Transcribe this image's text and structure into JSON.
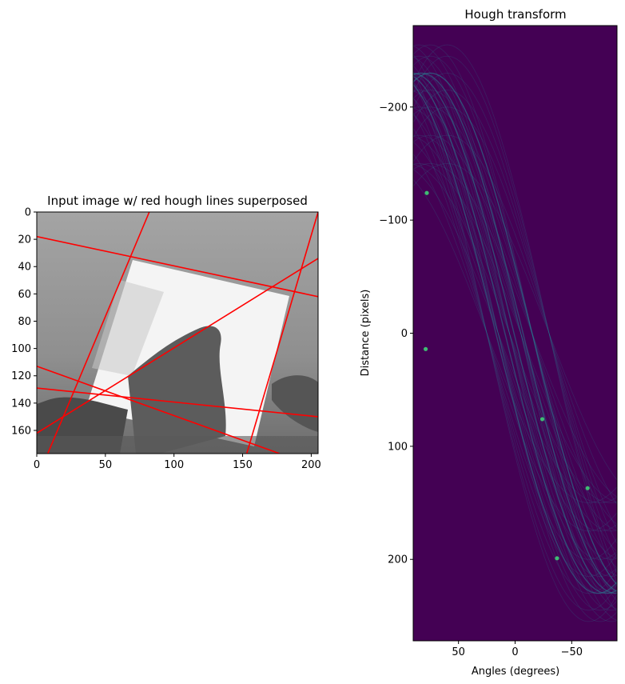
{
  "chart_data": [
    {
      "type": "image",
      "title": "Input image w/ red hough lines superposed",
      "xlabel": "",
      "ylabel": "",
      "xlim": [
        0,
        205
      ],
      "ylim": [
        177,
        0
      ],
      "x_ticks": [
        0,
        50,
        100,
        150,
        200
      ],
      "y_ticks": [
        0,
        20,
        40,
        60,
        80,
        100,
        120,
        140,
        160
      ],
      "image_description": "Grayscale photo of a tilted white sheet of paper held by a hand",
      "line_color": "#ff0000",
      "hough_lines": [
        {
          "x1": 0,
          "y1": 18,
          "x2": 205,
          "y2": 62
        },
        {
          "x1": 8,
          "y1": 177,
          "x2": 82,
          "y2": 0
        },
        {
          "x1": 0,
          "y1": 162,
          "x2": 205,
          "y2": 34
        },
        {
          "x1": 153,
          "y1": 177,
          "x2": 205,
          "y2": 0
        },
        {
          "x1": 0,
          "y1": 113,
          "x2": 177,
          "y2": 177
        },
        {
          "x1": 0,
          "y1": 129,
          "x2": 205,
          "y2": 150
        }
      ]
    },
    {
      "type": "heatmap",
      "title": "Hough transform",
      "xlabel": "Angles (degrees)",
      "ylabel": "Distance (pixels)",
      "xlim": [
        90,
        -90
      ],
      "ylim": [
        272,
        -272
      ],
      "x_ticks": [
        50,
        0,
        -50
      ],
      "y_ticks": [
        -200,
        -100,
        0,
        100,
        200
      ],
      "colormap": "viridis",
      "background_color": "#440154",
      "curve_color": "#2a788e",
      "peak_color": "#3fbc73",
      "peaks": [
        {
          "angle": 78,
          "distance": -124
        },
        {
          "angle": 79,
          "distance": 14
        },
        {
          "angle": -24,
          "distance": 76
        },
        {
          "angle": -64,
          "distance": 137
        },
        {
          "angle": -37,
          "distance": 199
        }
      ]
    }
  ]
}
